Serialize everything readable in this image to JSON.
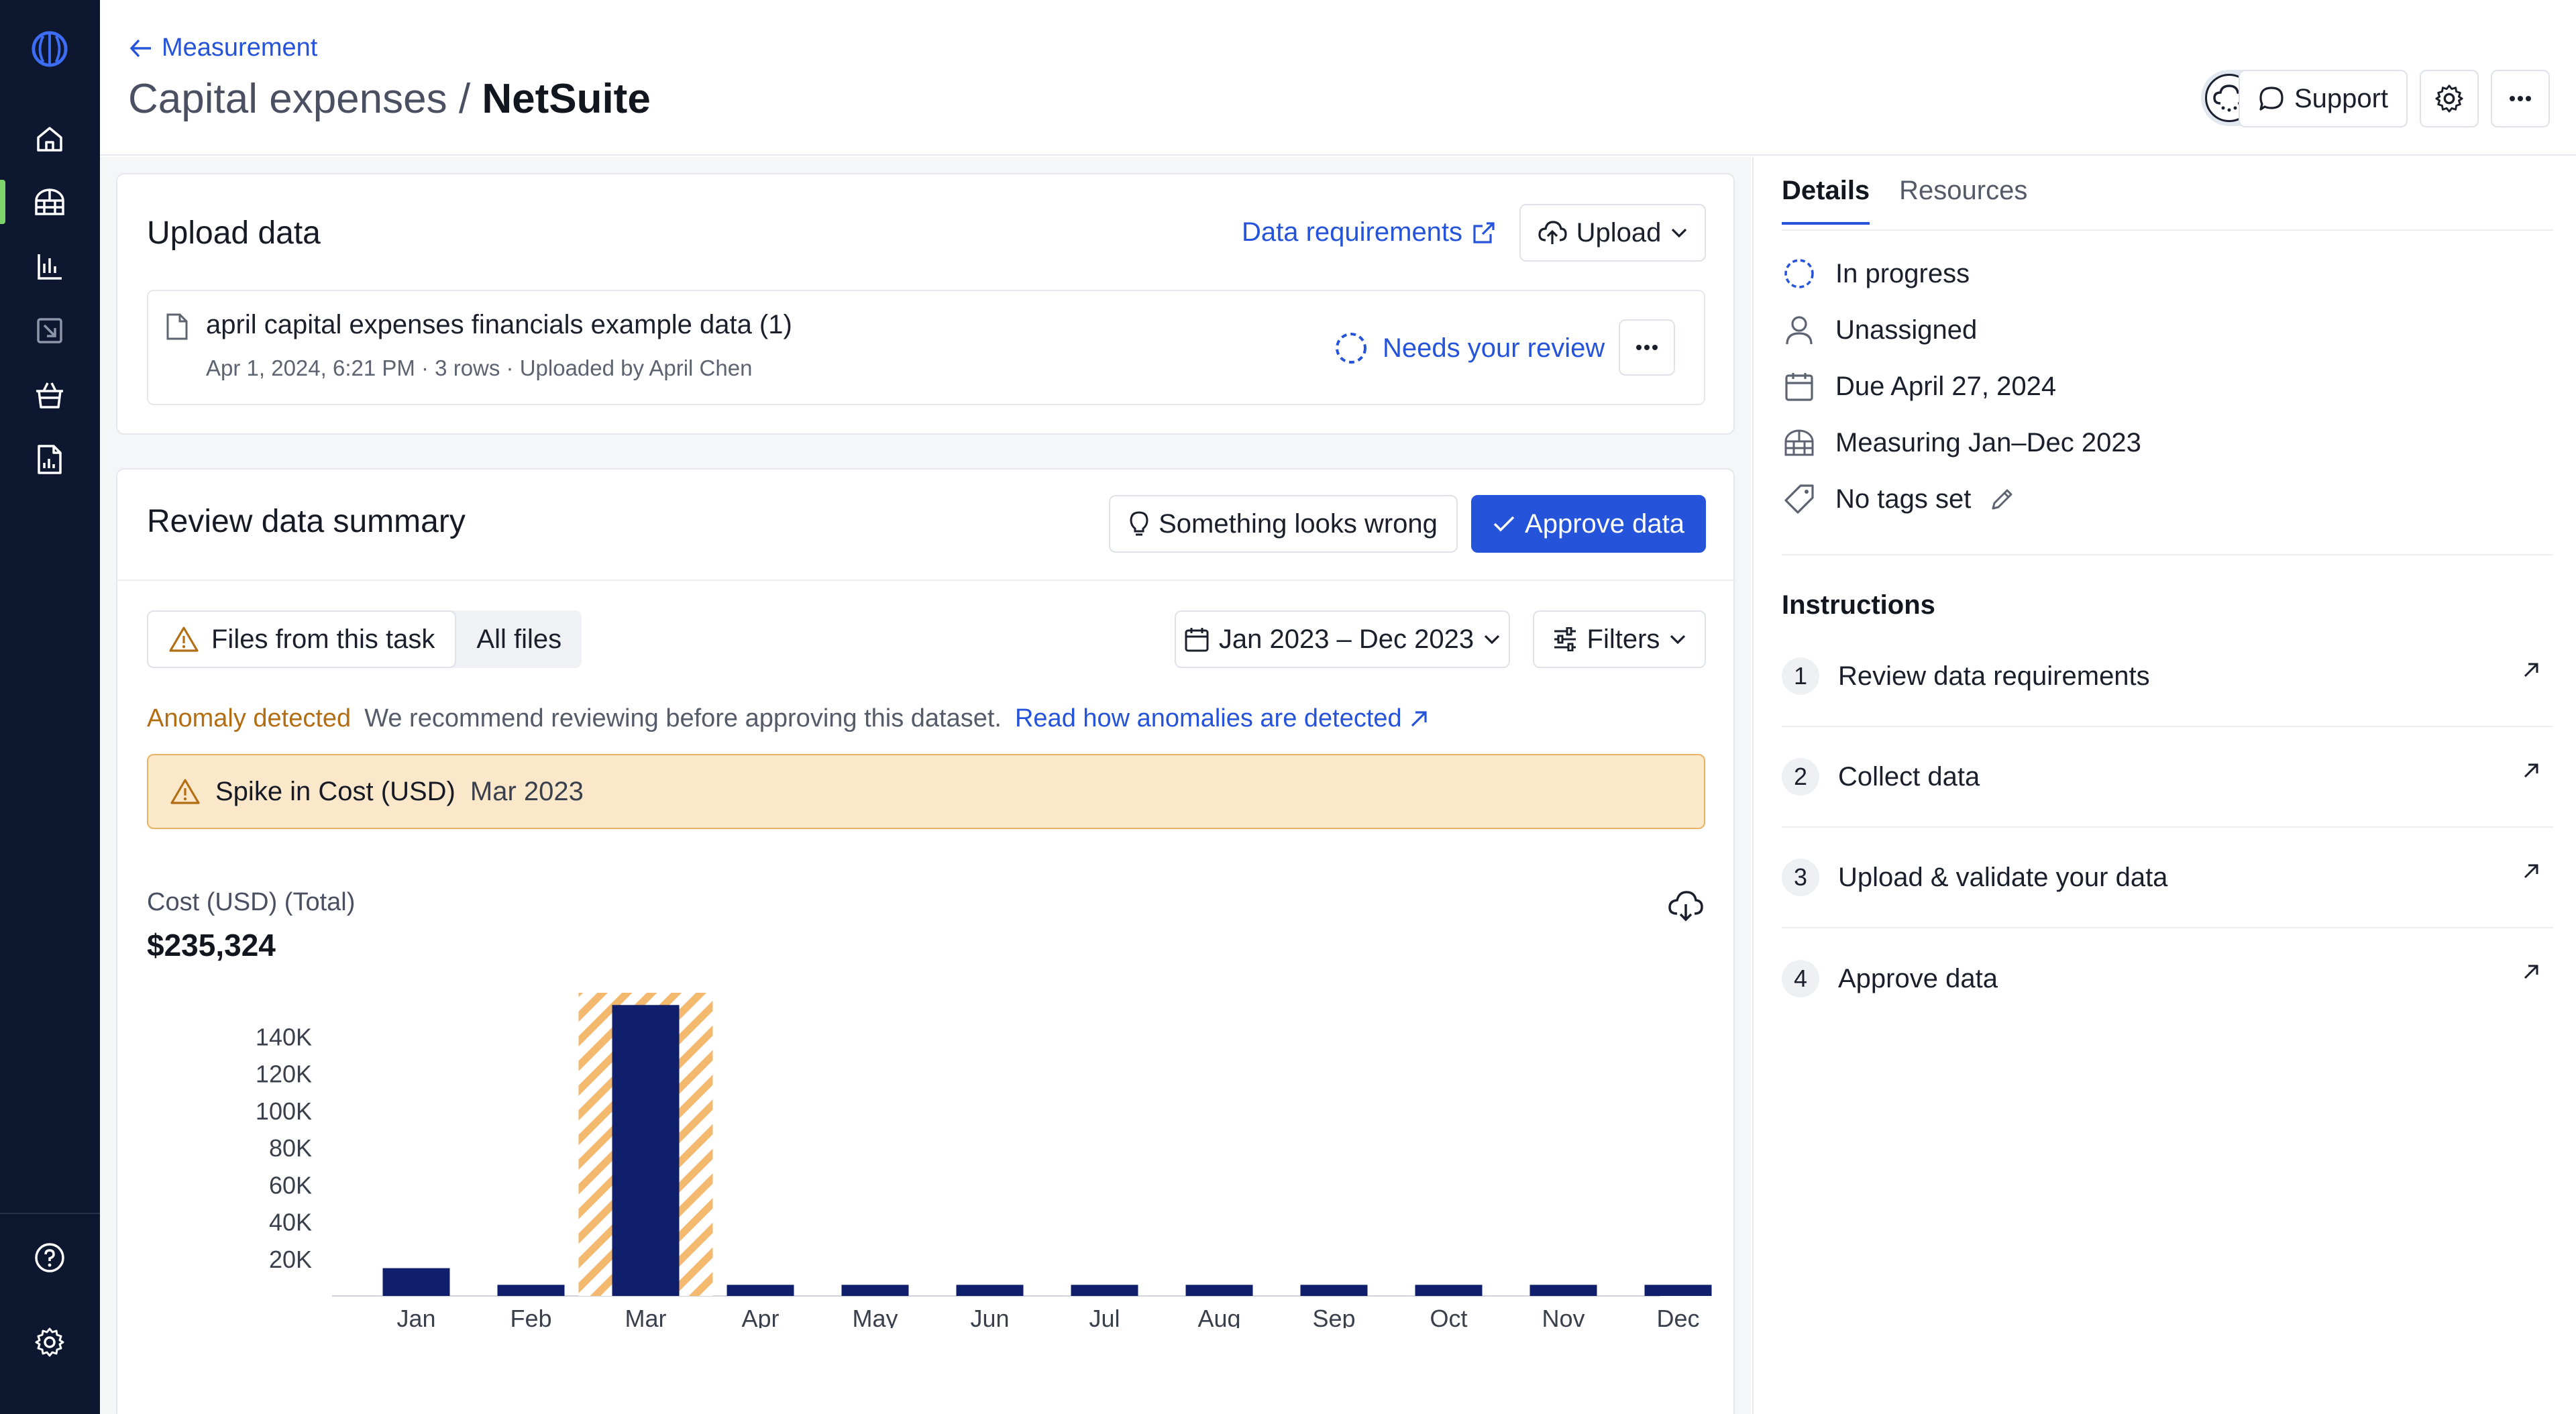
{
  "header": {
    "back_label": "Measurement",
    "title_prefix": "Capital expenses /",
    "title_main": "NetSuite",
    "support_label": "Support"
  },
  "upload_card": {
    "title": "Upload data",
    "requirements_link": "Data requirements",
    "upload_button": "Upload",
    "file": {
      "name": "april capital expenses financials example data (1)",
      "meta": "Apr 1, 2024, 6:21 PM · 3 rows · Uploaded by April Chen",
      "status": "Needs your review"
    }
  },
  "review_card": {
    "title": "Review data summary",
    "something_wrong_button": "Something looks wrong",
    "approve_button": "Approve data",
    "seg_files_task": "Files from this task",
    "seg_all_files": "All files",
    "date_range": "Jan 2023 – Dec 2023",
    "filters_label": "Filters",
    "anomaly_label": "Anomaly detected",
    "anomaly_text": "We recommend reviewing before approving this dataset.",
    "anomaly_link": "Read how anomalies are detected",
    "spike_title": "Spike in Cost (USD)",
    "spike_period": "Mar 2023",
    "metric_label": "Cost (USD) (Total)",
    "metric_value": "$235,324"
  },
  "chart_data": {
    "type": "bar",
    "categories": [
      "Jan",
      "Feb",
      "Mar",
      "Apr",
      "May",
      "Jun",
      "Jul",
      "Aug",
      "Sep",
      "Oct",
      "Nov",
      "Dec"
    ],
    "values": [
      15000,
      6000,
      157000,
      6000,
      6000,
      6000,
      6000,
      6000,
      6000,
      6000,
      6000,
      6000
    ],
    "y_ticks": [
      "20K",
      "40K",
      "60K",
      "80K",
      "100K",
      "120K",
      "140K"
    ],
    "ylim": [
      0,
      160000
    ],
    "anomaly_category": "Mar",
    "bar_color": "#0f1f6b",
    "anomaly_color": "#f3b96f",
    "grid": false
  },
  "right_panel": {
    "tab_details": "Details",
    "tab_resources": "Resources",
    "status": "In progress",
    "assignee": "Unassigned",
    "due": "Due April 27, 2024",
    "measuring": "Measuring Jan–Dec 2023",
    "tags": "No tags set",
    "instructions_title": "Instructions",
    "steps": [
      {
        "num": "1",
        "label": "Review data requirements"
      },
      {
        "num": "2",
        "label": "Collect data"
      },
      {
        "num": "3",
        "label": "Upload & validate your data"
      },
      {
        "num": "4",
        "label": "Approve data"
      }
    ]
  },
  "colors": {
    "sidebar": "#0d1830",
    "accent": "#2553d9",
    "anomaly_text": "#b36d12",
    "anomaly_bg": "#fbe7c9"
  }
}
